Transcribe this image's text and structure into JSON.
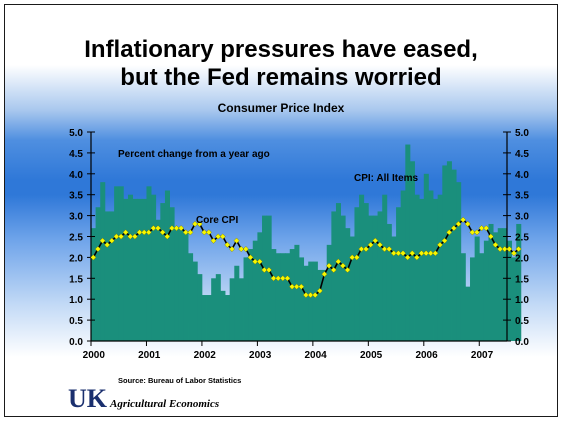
{
  "slide": {
    "title_line1": "Inflationary pressures have eased,",
    "title_line2": "but the Fed remains worried",
    "subtitle": "Consumer Price Index",
    "source": "Source: Bureau of Labor Statistics",
    "logo_text": "UK",
    "department": "Agricultural Economics"
  },
  "colors": {
    "bars": "#1a8f7c",
    "core_line": "#000000",
    "core_marker": "#f7f700",
    "background_band": "#2f78d8"
  },
  "chart_data": {
    "type": "bar",
    "title": "",
    "xlabel": "",
    "ylabel": "",
    "ylim": [
      0,
      5.0
    ],
    "yticks": [
      "0.0",
      "0.5",
      "1.0",
      "1.5",
      "2.0",
      "2.5",
      "3.0",
      "3.5",
      "4.0",
      "4.5",
      "5.0"
    ],
    "xticks": [
      "2000",
      "2001",
      "2002",
      "2003",
      "2004",
      "2005",
      "2006",
      "2007"
    ],
    "grid": false,
    "annotations": [
      "Percent change from a year ago",
      "CPI: All Items",
      "Core CPI"
    ],
    "series": [
      {
        "name": "CPI: All Items",
        "type": "bar",
        "frequency": "monthly",
        "start": "2000-01",
        "values": [
          2.7,
          3.2,
          3.8,
          3.1,
          3.1,
          3.7,
          3.7,
          3.4,
          3.5,
          3.4,
          3.4,
          3.4,
          3.7,
          3.5,
          2.9,
          3.3,
          3.6,
          3.2,
          2.7,
          2.7,
          2.6,
          2.1,
          1.9,
          1.6,
          1.1,
          1.1,
          1.5,
          1.6,
          1.2,
          1.1,
          1.5,
          1.8,
          1.5,
          2.0,
          2.2,
          2.4,
          2.6,
          3.0,
          3.0,
          2.2,
          2.1,
          2.1,
          2.1,
          2.2,
          2.3,
          2.0,
          1.8,
          1.9,
          1.9,
          1.7,
          1.7,
          2.3,
          3.1,
          3.3,
          3.0,
          2.7,
          2.5,
          3.2,
          3.5,
          3.3,
          3.0,
          3.0,
          3.1,
          3.5,
          2.8,
          2.5,
          3.2,
          3.6,
          4.7,
          4.3,
          3.5,
          3.4,
          4.0,
          3.6,
          3.4,
          3.5,
          4.2,
          4.3,
          4.1,
          3.8,
          2.1,
          1.3,
          2.0,
          2.5,
          2.1,
          2.4,
          2.8,
          2.6,
          2.7,
          2.7,
          2.4,
          2.0,
          2.8
        ]
      },
      {
        "name": "Core CPI",
        "type": "line",
        "frequency": "monthly",
        "start": "2000-01",
        "values": [
          2.0,
          2.2,
          2.4,
          2.3,
          2.4,
          2.5,
          2.5,
          2.6,
          2.5,
          2.5,
          2.6,
          2.6,
          2.6,
          2.7,
          2.7,
          2.6,
          2.5,
          2.7,
          2.7,
          2.7,
          2.6,
          2.6,
          2.8,
          2.8,
          2.6,
          2.6,
          2.4,
          2.5,
          2.5,
          2.3,
          2.2,
          2.4,
          2.2,
          2.2,
          2.0,
          1.9,
          1.9,
          1.7,
          1.7,
          1.5,
          1.5,
          1.5,
          1.5,
          1.3,
          1.3,
          1.3,
          1.1,
          1.1,
          1.1,
          1.2,
          1.6,
          1.8,
          1.7,
          1.9,
          1.8,
          1.7,
          2.0,
          2.0,
          2.2,
          2.2,
          2.3,
          2.4,
          2.3,
          2.2,
          2.2,
          2.1,
          2.1,
          2.1,
          2.0,
          2.1,
          2.0,
          2.1,
          2.1,
          2.1,
          2.1,
          2.3,
          2.4,
          2.6,
          2.7,
          2.8,
          2.9,
          2.8,
          2.6,
          2.6,
          2.7,
          2.7,
          2.5,
          2.3,
          2.2,
          2.2,
          2.2,
          2.1,
          2.2
        ]
      }
    ]
  }
}
